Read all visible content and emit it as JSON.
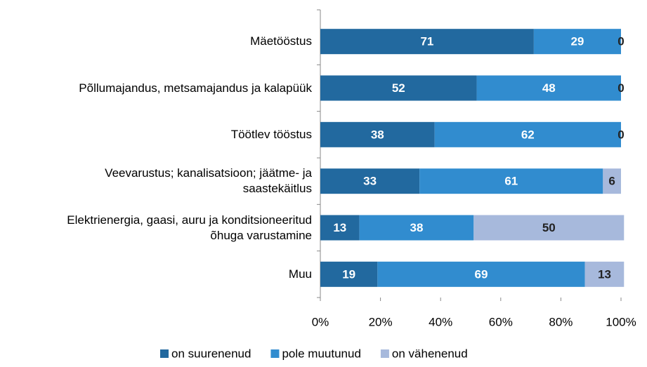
{
  "chart_data": {
    "type": "bar",
    "orientation": "horizontal",
    "stacked": true,
    "categories": [
      "Mäetööstus",
      "Põllumajandus, metsamajandus ja kalapüük",
      "Töötlev tööstus",
      "Veevarustus; kanalisatsioon; jäätme- ja saastekäitlus",
      "Elektrienergia, gaasi, auru ja konditsioneeritud õhuga varustamine",
      "Muu"
    ],
    "series": [
      {
        "name": "on suurenenud",
        "color": "#22699f",
        "values": [
          71,
          52,
          38,
          33,
          13,
          19
        ]
      },
      {
        "name": "pole muutunud",
        "color": "#318ccf",
        "values": [
          29,
          48,
          62,
          61,
          38,
          69
        ]
      },
      {
        "name": "on vähenenud",
        "color": "#a7b9dc",
        "values": [
          0,
          0,
          0,
          6,
          50,
          13
        ]
      }
    ],
    "xlim": [
      0,
      100
    ],
    "xticks": [
      {
        "value": 0,
        "label": "0%"
      },
      {
        "value": 20,
        "label": "20%"
      },
      {
        "value": 40,
        "label": "40%"
      },
      {
        "value": 60,
        "label": "60%"
      },
      {
        "value": 80,
        "label": "80%"
      },
      {
        "value": 100,
        "label": "100%"
      }
    ],
    "legend": "bottom"
  }
}
